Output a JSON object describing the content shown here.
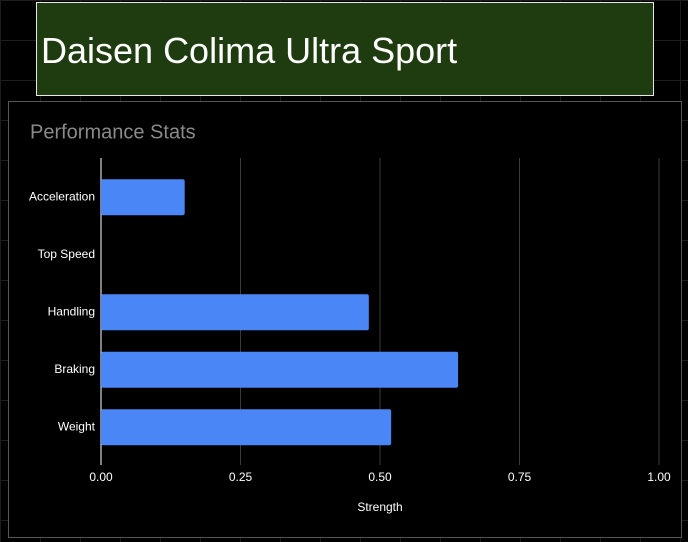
{
  "header": {
    "title": "Daisen Colima Ultra Sport"
  },
  "chart_data": {
    "type": "barh",
    "title": "Performance Stats",
    "x_label": "Strength",
    "categories": [
      "Acceleration",
      "Top Speed",
      "Handling",
      "Braking",
      "Weight"
    ],
    "values": [
      0.15,
      0,
      0.48,
      0.64,
      0.52
    ],
    "color": "#4a86f5",
    "xlim": [
      0,
      1
    ],
    "xticks": [
      {
        "value": 0,
        "label": "0.00"
      },
      {
        "value": 0.25,
        "label": "0.25"
      },
      {
        "value": 0.5,
        "label": "0.50"
      },
      {
        "value": 0.75,
        "label": "0.75"
      },
      {
        "value": 1,
        "label": "1.00"
      }
    ],
    "grid": true
  }
}
